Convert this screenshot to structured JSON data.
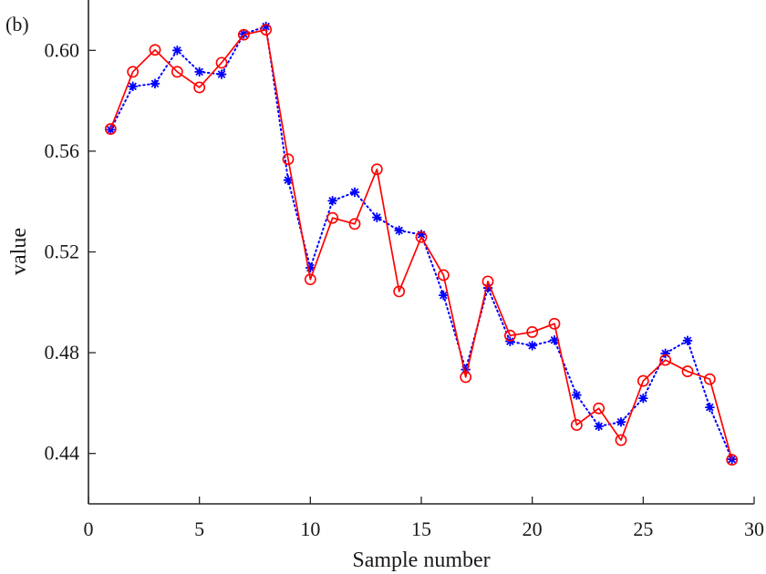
{
  "chart_data": {
    "type": "line",
    "panel_label": "(b)",
    "xlabel": "Sample number",
    "ylabel": "value",
    "xlim": [
      0,
      30
    ],
    "ylim": [
      0.42,
      0.62
    ],
    "xticks": [
      0,
      5,
      10,
      15,
      20,
      25,
      30
    ],
    "xtick_labels": [
      "0",
      "5",
      "10",
      "15",
      "20",
      "25",
      "30"
    ],
    "yticks": [
      0.44,
      0.48,
      0.52,
      0.56,
      0.6
    ],
    "ytick_labels": [
      "0.44",
      "0.48",
      "0.52",
      "0.56",
      "0.60"
    ],
    "grid": false,
    "legend": "none",
    "x": [
      1,
      2,
      3,
      4,
      5,
      6,
      7,
      8,
      9,
      10,
      11,
      12,
      13,
      14,
      15,
      16,
      17,
      18,
      19,
      20,
      21,
      22,
      23,
      24,
      25,
      26,
      27,
      28,
      29
    ],
    "series": [
      {
        "color": "#0000ff",
        "line_style": "dotted",
        "marker": "asterisk",
        "values": [
          0.5685,
          0.5857,
          0.5868,
          0.6,
          0.5915,
          0.5905,
          0.6065,
          0.6095,
          0.5485,
          0.5137,
          0.5403,
          0.5437,
          0.5337,
          0.5285,
          0.5269,
          0.5028,
          0.4733,
          0.5057,
          0.4845,
          0.4828,
          0.485,
          0.4632,
          0.4508,
          0.4525,
          0.4619,
          0.4797,
          0.4848,
          0.4583,
          0.4377
        ]
      },
      {
        "color": "#ff0000",
        "line_style": "solid",
        "marker": "circle",
        "values": [
          0.5688,
          0.5915,
          0.6002,
          0.5915,
          0.5853,
          0.5951,
          0.6062,
          0.6082,
          0.5568,
          0.5091,
          0.5335,
          0.5311,
          0.5528,
          0.5043,
          0.5259,
          0.5108,
          0.4703,
          0.5083,
          0.4868,
          0.4882,
          0.4915,
          0.4513,
          0.4579,
          0.4453,
          0.4688,
          0.4771,
          0.4726,
          0.4695,
          0.4375
        ]
      }
    ]
  }
}
